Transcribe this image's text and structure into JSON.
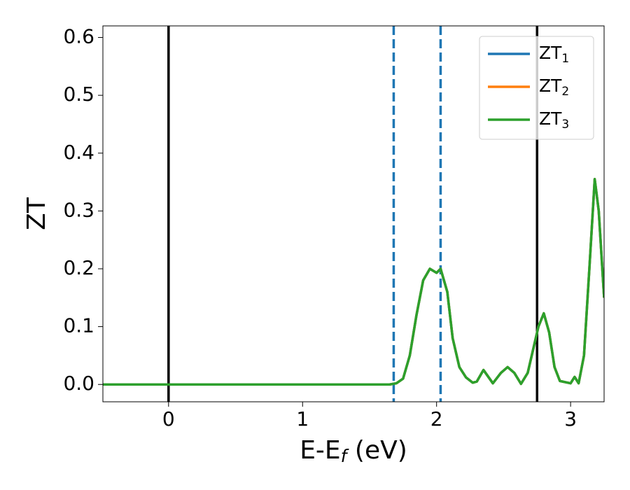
{
  "chart_data": {
    "type": "line",
    "ylabel": "ZT",
    "xlabel": {
      "main": "E-E",
      "sub": "f",
      "tail": " (eV)"
    },
    "xlim": [
      -0.49,
      3.25
    ],
    "ylim": [
      -0.03,
      0.62
    ],
    "xticks": [
      0,
      1,
      2,
      3
    ],
    "yticks": [
      {
        "value": 0,
        "label": "0.0"
      },
      0.1,
      0.2,
      0.3,
      0.4,
      0.5,
      0.6
    ],
    "grid": false,
    "legend": "upper right",
    "vlines": [
      {
        "x": 0,
        "color": "#000000",
        "style": "solid"
      },
      {
        "x": 2.75,
        "color": "#000000",
        "style": "solid"
      },
      {
        "x": 1.68,
        "color": "#1f77b4",
        "style": "dashed"
      },
      {
        "x": 2.03,
        "color": "#1f77b4",
        "style": "dashed"
      }
    ],
    "x": [
      -0.49,
      0,
      0.5,
      1.0,
      1.5,
      1.65,
      1.7,
      1.75,
      1.8,
      1.85,
      1.9,
      1.95,
      2.0,
      2.03,
      2.08,
      2.12,
      2.17,
      2.22,
      2.27,
      2.3,
      2.35,
      2.42,
      2.48,
      2.53,
      2.58,
      2.63,
      2.68,
      2.72,
      2.76,
      2.8,
      2.84,
      2.88,
      2.92,
      2.96,
      3.0,
      3.03,
      3.06,
      3.1,
      3.14,
      3.18,
      3.21,
      3.25
    ],
    "series": [
      {
        "name": "ZT1",
        "color": "#1f77b4",
        "values": [
          0,
          0,
          0,
          0,
          0,
          0,
          0.002,
          0.01,
          0.05,
          0.12,
          0.18,
          0.2,
          0.193,
          0.2,
          0.16,
          0.08,
          0.03,
          0.012,
          0.003,
          0.005,
          0.025,
          0.002,
          0.02,
          0.03,
          0.02,
          0.001,
          0.02,
          0.06,
          0.1,
          0.123,
          0.09,
          0.03,
          0.006,
          0.004,
          0.002,
          0.013,
          0.002,
          0.05,
          0.2,
          0.355,
          0.3,
          0.15
        ]
      },
      {
        "name": "ZT2",
        "color": "#ff7f0e",
        "values": [
          0,
          0,
          0,
          0,
          0,
          0,
          0.002,
          0.01,
          0.05,
          0.12,
          0.18,
          0.2,
          0.193,
          0.2,
          0.16,
          0.08,
          0.03,
          0.012,
          0.003,
          0.005,
          0.025,
          0.002,
          0.02,
          0.03,
          0.02,
          0.001,
          0.02,
          0.06,
          0.1,
          0.123,
          0.09,
          0.03,
          0.006,
          0.004,
          0.002,
          0.013,
          0.002,
          0.05,
          0.2,
          0.355,
          0.3,
          0.15
        ]
      },
      {
        "name": "ZT3",
        "color": "#2ca02c",
        "values": [
          0,
          0,
          0,
          0,
          0,
          0,
          0.002,
          0.01,
          0.05,
          0.12,
          0.18,
          0.2,
          0.193,
          0.2,
          0.16,
          0.08,
          0.03,
          0.012,
          0.003,
          0.005,
          0.025,
          0.002,
          0.02,
          0.03,
          0.02,
          0.001,
          0.02,
          0.06,
          0.1,
          0.123,
          0.09,
          0.03,
          0.006,
          0.004,
          0.002,
          0.013,
          0.002,
          0.05,
          0.2,
          0.355,
          0.3,
          0.15
        ]
      }
    ]
  }
}
